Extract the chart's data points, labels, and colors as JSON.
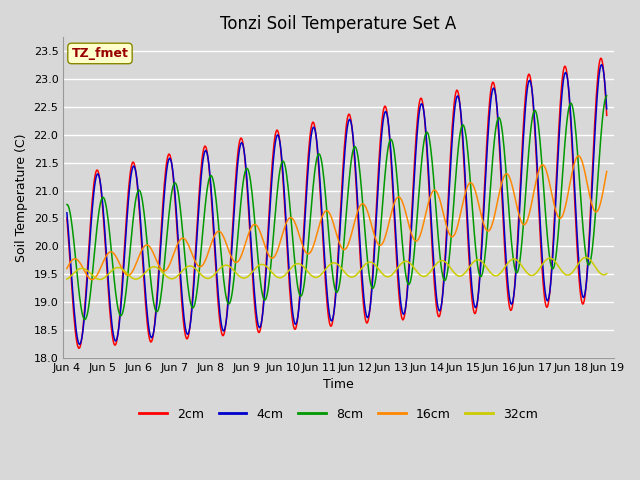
{
  "title": "Tonzi Soil Temperature Set A",
  "xlabel": "Time",
  "ylabel": "Soil Temperature (C)",
  "annotation_text": "TZ_fmet",
  "annotation_bg": "#ffffcc",
  "annotation_fg": "#990000",
  "annotation_border": "#888800",
  "ylim": [
    18.0,
    23.75
  ],
  "yticks": [
    18.0,
    18.5,
    19.0,
    19.5,
    20.0,
    20.5,
    21.0,
    21.5,
    22.0,
    22.5,
    23.0,
    23.5
  ],
  "xtick_labels": [
    "Jun 4",
    "Jun 5",
    "Jun 6",
    "Jun 7",
    "Jun 8",
    "Jun 9",
    "Jun 10",
    "Jun 11",
    "Jun 12",
    "Jun 13",
    "Jun 14",
    "Jun 15",
    "Jun 16",
    "Jun 17",
    "Jun 18",
    "Jun 19"
  ],
  "xtick_positions": [
    0,
    1,
    2,
    3,
    4,
    5,
    6,
    7,
    8,
    9,
    10,
    11,
    12,
    13,
    14,
    15
  ],
  "series_colors": [
    "#ff0000",
    "#0000cc",
    "#009900",
    "#ff8800",
    "#cccc00"
  ],
  "series_labels": [
    "2cm",
    "4cm",
    "8cm",
    "16cm",
    "32cm"
  ],
  "bg_color": "#d8d8d8",
  "plot_bg_color": "#d8d8d8",
  "grid_color": "#ffffff",
  "title_fontsize": 12,
  "axis_label_fontsize": 9,
  "tick_fontsize": 8,
  "legend_fontsize": 9
}
